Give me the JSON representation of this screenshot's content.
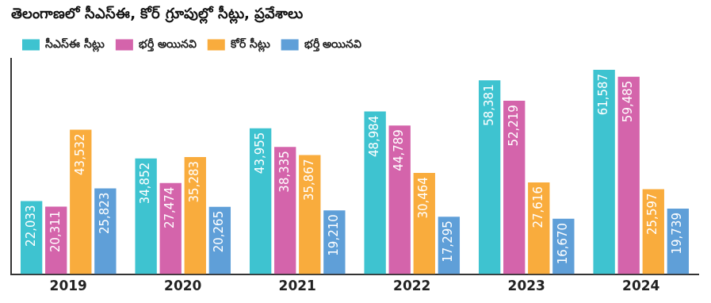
{
  "chart_data": {
    "type": "bar",
    "title": "తెలంగాణలో సీఎస్‌ఈ, కోర్ గ్రూపుల్లో సీట్లు, ప్రవేశాలు",
    "categories": [
      "2019",
      "2020",
      "2021",
      "2022",
      "2023",
      "2024"
    ],
    "series": [
      {
        "name": "సీఎస్‌ఈ సీట్లు",
        "color": "#3ec3d0",
        "values": [
          22033,
          34852,
          43955,
          48984,
          58381,
          61587
        ],
        "value_labels": [
          "22,033",
          "34,852",
          "43,955",
          "48,984",
          "58,381",
          "61,587"
        ]
      },
      {
        "name": "భర్తీ అయినవి",
        "color": "#d464ab",
        "values": [
          20311,
          27474,
          38335,
          44789,
          52219,
          59485
        ],
        "value_labels": [
          "20,311",
          "27,474",
          "38,335",
          "44,789",
          "52,219",
          "59,485"
        ]
      },
      {
        "name": "కోర్ సీట్లు",
        "color": "#f9ac3d",
        "values": [
          43532,
          35283,
          35867,
          30464,
          27616,
          25597
        ],
        "value_labels": [
          "43,532",
          "35,283",
          "35,867",
          "30,464",
          "27,616",
          "25,597"
        ]
      },
      {
        "name": "భర్తీ అయినవి",
        "color": "#5f9fd8",
        "values": [
          25823,
          20265,
          19210,
          17295,
          16670,
          19739
        ],
        "value_labels": [
          "25,823",
          "20,265",
          "19,210",
          "17,295",
          "16,670",
          "19,739"
        ]
      }
    ],
    "ylim": [
      0,
      65000
    ],
    "tick_labels": "x",
    "grid": false,
    "legend": "top-left",
    "data_labels": true
  }
}
